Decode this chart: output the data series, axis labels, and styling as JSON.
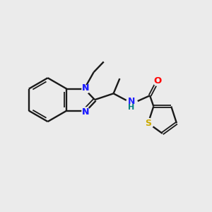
{
  "background_color": "#ebebeb",
  "bond_color": "#1a1a1a",
  "N_color": "#2020ff",
  "O_color": "#ff0000",
  "S_color": "#ccaa00",
  "NH_color": "#2020ff",
  "H_color": "#008080",
  "figsize": [
    3.0,
    3.0
  ],
  "dpi": 100,
  "xlim": [
    0,
    10
  ],
  "ylim": [
    0,
    10
  ]
}
